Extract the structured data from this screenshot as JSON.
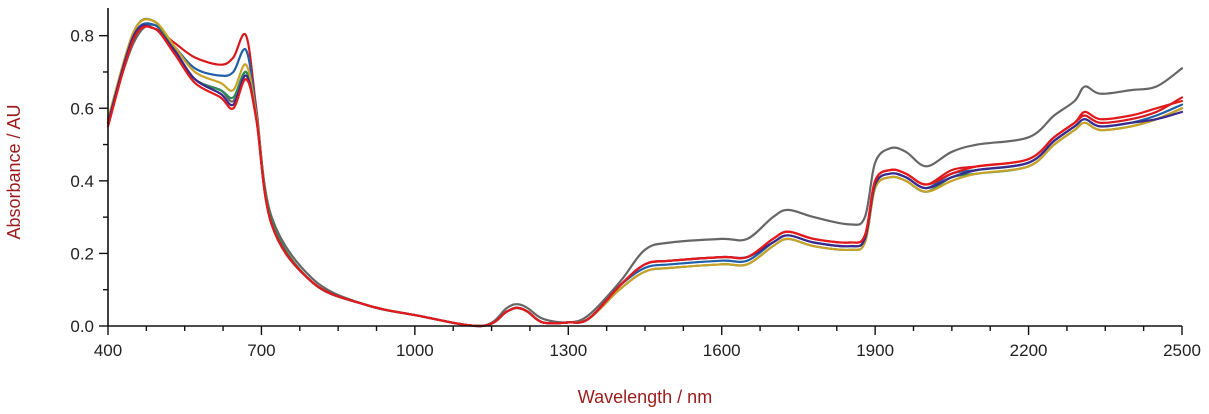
{
  "chart_data": {
    "type": "line",
    "xlabel": "Wavelength / nm",
    "ylabel": "Absorbance / AU",
    "label_color": "#9b1c1c",
    "xlim": [
      400,
      2500
    ],
    "ylim": [
      0,
      0.85
    ],
    "x_ticks": [
      400,
      700,
      1000,
      1300,
      1600,
      1900,
      2200,
      2500
    ],
    "y_ticks": [
      0.0,
      0.2,
      0.4,
      0.6,
      0.8
    ],
    "y_tick_labels": [
      "0.0",
      "0.2",
      "0.4",
      "0.6",
      "0.8"
    ],
    "grid": false,
    "legend": "none",
    "series": [
      {
        "color": "#666666",
        "x": [
          400,
          450,
          490,
          530,
          570,
          620,
          645,
          670,
          690,
          720,
          800,
          900,
          1000,
          1130,
          1180,
          1200,
          1220,
          1250,
          1300,
          1340,
          1400,
          1450,
          1500,
          1600,
          1650,
          1700,
          1730,
          1780,
          1850,
          1880,
          1900,
          1930,
          1960,
          2000,
          2050,
          2100,
          2200,
          2250,
          2290,
          2310,
          2340,
          2400,
          2450,
          2500
        ],
        "y": [
          0.57,
          0.78,
          0.83,
          0.76,
          0.68,
          0.65,
          0.62,
          0.7,
          0.58,
          0.3,
          0.13,
          0.06,
          0.03,
          0.0,
          0.05,
          0.06,
          0.05,
          0.02,
          0.01,
          0.03,
          0.12,
          0.21,
          0.23,
          0.24,
          0.24,
          0.3,
          0.32,
          0.3,
          0.28,
          0.3,
          0.45,
          0.49,
          0.48,
          0.44,
          0.48,
          0.5,
          0.52,
          0.58,
          0.62,
          0.66,
          0.64,
          0.65,
          0.66,
          0.71
        ]
      },
      {
        "color": "#d7191c",
        "x": [
          400,
          450,
          490,
          530,
          570,
          620,
          645,
          670,
          690,
          720,
          800,
          900,
          1000,
          1130,
          1180,
          1200,
          1220,
          1250,
          1300,
          1340,
          1400,
          1450,
          1500,
          1600,
          1650,
          1700,
          1730,
          1780,
          1850,
          1880,
          1900,
          1930,
          1960,
          2000,
          2050,
          2100,
          2200,
          2250,
          2290,
          2310,
          2340,
          2400,
          2450,
          2500
        ],
        "y": [
          0.56,
          0.8,
          0.82,
          0.78,
          0.74,
          0.72,
          0.74,
          0.8,
          0.6,
          0.28,
          0.12,
          0.06,
          0.03,
          0.0,
          0.04,
          0.05,
          0.04,
          0.01,
          0.01,
          0.02,
          0.11,
          0.17,
          0.18,
          0.19,
          0.19,
          0.24,
          0.26,
          0.24,
          0.23,
          0.25,
          0.4,
          0.43,
          0.42,
          0.39,
          0.43,
          0.44,
          0.46,
          0.52,
          0.56,
          0.58,
          0.56,
          0.57,
          0.59,
          0.63
        ]
      },
      {
        "color": "#1f5fa8",
        "x": [
          400,
          450,
          490,
          530,
          570,
          620,
          645,
          670,
          690,
          720,
          800,
          900,
          1000,
          1130,
          1180,
          1200,
          1220,
          1250,
          1300,
          1340,
          1400,
          1450,
          1500,
          1600,
          1650,
          1700,
          1730,
          1780,
          1850,
          1880,
          1900,
          1930,
          1960,
          2000,
          2050,
          2100,
          2200,
          2250,
          2290,
          2310,
          2340,
          2400,
          2450,
          2500
        ],
        "y": [
          0.57,
          0.8,
          0.83,
          0.77,
          0.71,
          0.69,
          0.7,
          0.76,
          0.59,
          0.28,
          0.12,
          0.06,
          0.03,
          0.0,
          0.04,
          0.05,
          0.04,
          0.01,
          0.01,
          0.02,
          0.11,
          0.16,
          0.17,
          0.18,
          0.18,
          0.23,
          0.25,
          0.23,
          0.22,
          0.24,
          0.39,
          0.42,
          0.41,
          0.38,
          0.42,
          0.43,
          0.45,
          0.51,
          0.55,
          0.57,
          0.55,
          0.56,
          0.58,
          0.61
        ]
      },
      {
        "color": "#2e8b57",
        "x": [
          400,
          450,
          490,
          530,
          570,
          620,
          645,
          670,
          690,
          720,
          800,
          900,
          1000,
          1130,
          1180,
          1200,
          1220,
          1250,
          1300,
          1340,
          1400,
          1450,
          1500,
          1600,
          1650,
          1700,
          1730,
          1780,
          1850,
          1880,
          1900,
          1930,
          1960,
          2000,
          2050,
          2100,
          2200,
          2250,
          2290,
          2310,
          2340,
          2400,
          2450,
          2500
        ],
        "y": [
          0.56,
          0.81,
          0.84,
          0.76,
          0.68,
          0.65,
          0.63,
          0.7,
          0.58,
          0.29,
          0.12,
          0.06,
          0.03,
          0.0,
          0.04,
          0.05,
          0.04,
          0.01,
          0.01,
          0.02,
          0.1,
          0.15,
          0.16,
          0.17,
          0.17,
          0.22,
          0.24,
          0.22,
          0.21,
          0.23,
          0.38,
          0.41,
          0.4,
          0.37,
          0.41,
          0.42,
          0.44,
          0.5,
          0.54,
          0.56,
          0.54,
          0.55,
          0.57,
          0.6
        ]
      },
      {
        "color": "#c9a227",
        "x": [
          400,
          450,
          490,
          530,
          570,
          620,
          645,
          670,
          690,
          720,
          800,
          900,
          1000,
          1130,
          1180,
          1200,
          1220,
          1250,
          1300,
          1340,
          1400,
          1450,
          1500,
          1600,
          1650,
          1700,
          1730,
          1780,
          1850,
          1880,
          1900,
          1930,
          1960,
          2000,
          2050,
          2100,
          2200,
          2250,
          2290,
          2310,
          2340,
          2400,
          2450,
          2500
        ],
        "y": [
          0.57,
          0.81,
          0.84,
          0.77,
          0.7,
          0.67,
          0.65,
          0.72,
          0.58,
          0.28,
          0.12,
          0.06,
          0.03,
          0.0,
          0.04,
          0.05,
          0.04,
          0.01,
          0.01,
          0.02,
          0.1,
          0.15,
          0.16,
          0.17,
          0.17,
          0.22,
          0.24,
          0.22,
          0.21,
          0.23,
          0.38,
          0.41,
          0.4,
          0.37,
          0.4,
          0.42,
          0.44,
          0.5,
          0.54,
          0.56,
          0.54,
          0.55,
          0.57,
          0.6
        ]
      },
      {
        "color": "#3a2a8c",
        "x": [
          400,
          450,
          490,
          530,
          570,
          620,
          645,
          670,
          690,
          720,
          800,
          900,
          1000,
          1130,
          1180,
          1200,
          1220,
          1250,
          1300,
          1340,
          1400,
          1450,
          1500,
          1600,
          1650,
          1700,
          1730,
          1780,
          1850,
          1880,
          1900,
          1930,
          1960,
          2000,
          2050,
          2100,
          2200,
          2250,
          2290,
          2310,
          2340,
          2400,
          2450,
          2500
        ],
        "y": [
          0.56,
          0.8,
          0.82,
          0.76,
          0.68,
          0.64,
          0.61,
          0.69,
          0.57,
          0.28,
          0.12,
          0.06,
          0.03,
          0.0,
          0.04,
          0.05,
          0.04,
          0.01,
          0.01,
          0.02,
          0.11,
          0.17,
          0.18,
          0.19,
          0.19,
          0.23,
          0.25,
          0.23,
          0.22,
          0.24,
          0.39,
          0.42,
          0.41,
          0.38,
          0.41,
          0.43,
          0.45,
          0.51,
          0.55,
          0.57,
          0.55,
          0.56,
          0.57,
          0.59
        ]
      },
      {
        "color": "#e31a1c",
        "x": [
          400,
          450,
          490,
          530,
          570,
          620,
          645,
          670,
          690,
          720,
          800,
          900,
          1000,
          1130,
          1180,
          1200,
          1220,
          1250,
          1300,
          1340,
          1400,
          1450,
          1500,
          1600,
          1650,
          1700,
          1730,
          1780,
          1850,
          1880,
          1900,
          1930,
          1960,
          2000,
          2050,
          2100,
          2200,
          2250,
          2290,
          2310,
          2340,
          2400,
          2450,
          2500
        ],
        "y": [
          0.55,
          0.79,
          0.82,
          0.75,
          0.67,
          0.63,
          0.6,
          0.68,
          0.57,
          0.28,
          0.12,
          0.06,
          0.03,
          0.0,
          0.04,
          0.05,
          0.04,
          0.01,
          0.01,
          0.02,
          0.11,
          0.17,
          0.18,
          0.19,
          0.19,
          0.24,
          0.26,
          0.24,
          0.23,
          0.25,
          0.4,
          0.43,
          0.42,
          0.39,
          0.42,
          0.44,
          0.46,
          0.52,
          0.56,
          0.59,
          0.57,
          0.58,
          0.6,
          0.62
        ]
      }
    ]
  }
}
